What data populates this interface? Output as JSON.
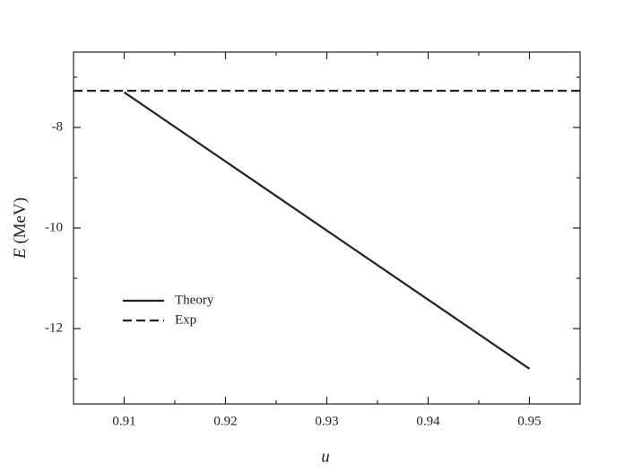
{
  "chart_data": {
    "type": "line",
    "xlabel": "u",
    "ylabel_var": "E",
    "ylabel_unit": "(MeV)",
    "xlim": [
      0.905,
      0.955
    ],
    "xticks": [
      0.91,
      0.92,
      0.93,
      0.94,
      0.95
    ],
    "xminorticks": [
      0.915,
      0.925,
      0.935,
      0.945
    ],
    "ylim": [
      -13.5,
      -6.5
    ],
    "yticks": [
      -8,
      -10,
      -12
    ],
    "yminorticks": [
      -7,
      -9,
      -11,
      -13
    ],
    "legend": "lower left",
    "series": [
      {
        "name": "Theory",
        "color": "#222222",
        "dashed": false,
        "x": [
          0.91,
          0.95
        ],
        "values": [
          -7.3,
          -12.8
        ]
      },
      {
        "name": "Exp",
        "color": "#222222",
        "dashed": true,
        "x": [
          0.905,
          0.955
        ],
        "values": [
          -7.27,
          -7.27
        ]
      }
    ]
  }
}
